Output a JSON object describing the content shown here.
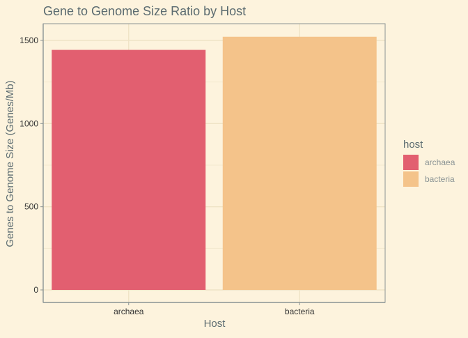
{
  "chart_data": {
    "type": "bar",
    "title": "Gene to Genome Size Ratio by Host",
    "xlabel": "Host",
    "ylabel": "Genes to Genome Size (Genes/Mb)",
    "categories": [
      "archaea",
      "bacteria"
    ],
    "values": [
      1443,
      1522
    ],
    "colors": [
      "#e25f70",
      "#f4c38a"
    ],
    "ylim": [
      0,
      1600
    ],
    "yticks": [
      0,
      500,
      1000,
      1500
    ],
    "grid": true,
    "legend": {
      "title": "host",
      "position": "right",
      "entries": [
        "archaea",
        "bacteria"
      ]
    },
    "colors_theme": {
      "background": "#fdf3dd",
      "grid": "#f2e8cf",
      "axis": "#8a9394",
      "title": "#5b6b70",
      "tick_text": "#333333",
      "legend_text": "#8a9394"
    }
  }
}
